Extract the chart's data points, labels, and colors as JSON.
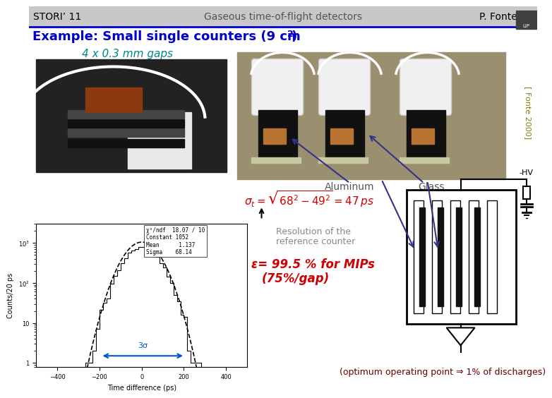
{
  "title_left": "STORI’ 11",
  "title_center": "Gaseous time-of-flight detectors",
  "title_right": "P. Fonte",
  "bg_color": "#ffffff",
  "example_title": "Example: Small single counters (9 cm",
  "example_title_sup": "2",
  "gaps_text": "4 x 0.3 mm gaps",
  "resolution_line1": "Resolution of the",
  "resolution_line2": "reference counter",
  "efficiency": "ε= 99.5 % for MIPs",
  "efficiency2": "(75%/gap)",
  "bottom_text": "(optimum operating point ⇒ 1% of discharges)",
  "sigma_label": "3σ",
  "aluminum_label": "Aluminum",
  "glass_label": "Glass",
  "hv_label": "-HV",
  "fonte_label": "[ Fonte 2000]",
  "example_color": "#0000cc",
  "gaps_color": "#008888",
  "formula_color": "#cc0000",
  "efficiency_color": "#cc0000",
  "fonte_color": "#808000",
  "sigma_color": "#0055cc",
  "bottom_text_color": "#660000",
  "resolution_color": "#888888",
  "aluminum_color": "#555555",
  "glass_color": "#555555",
  "arrow_color": "#333388"
}
